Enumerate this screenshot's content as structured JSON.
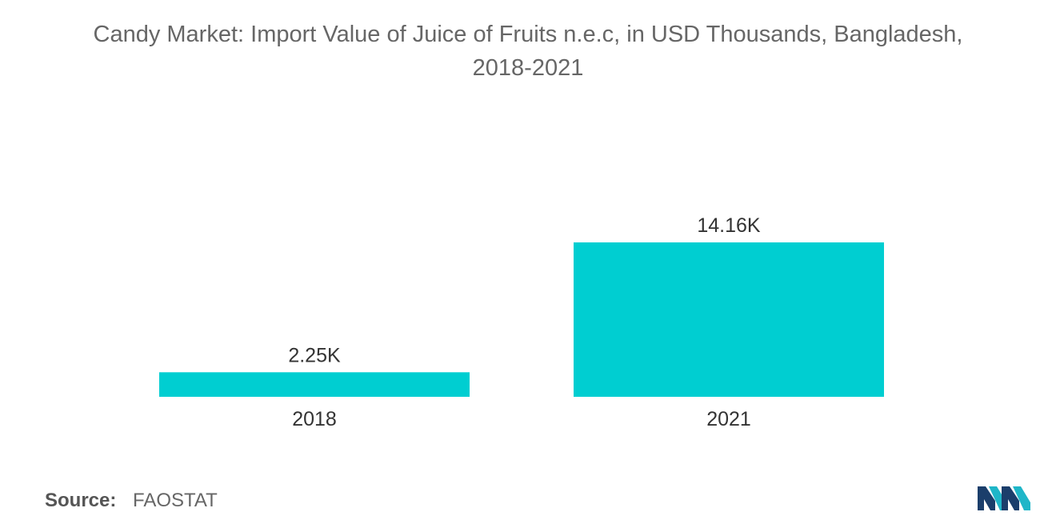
{
  "chart_data": {
    "type": "bar",
    "title": "Candy Market: Import Value of Juice of Fruits n.e.c, in USD Thousands, Bangladesh,",
    "title_line2": "2018-2021",
    "categories": [
      "2018",
      "2021"
    ],
    "values": [
      2.25,
      14.16
    ],
    "value_labels": [
      "2.25K",
      "14.16K"
    ],
    "xlabel": "",
    "ylabel": "",
    "ylim": [
      0,
      14.16
    ],
    "grid": false,
    "bar_color": "#00CED1",
    "label_color": "#333333"
  },
  "source": {
    "label": "Source:",
    "value": "FAOSTAT"
  },
  "logo": {
    "icon": "mordor-intelligence-logo-icon",
    "colors": [
      "#1B3E6B",
      "#1FB6C8"
    ]
  }
}
